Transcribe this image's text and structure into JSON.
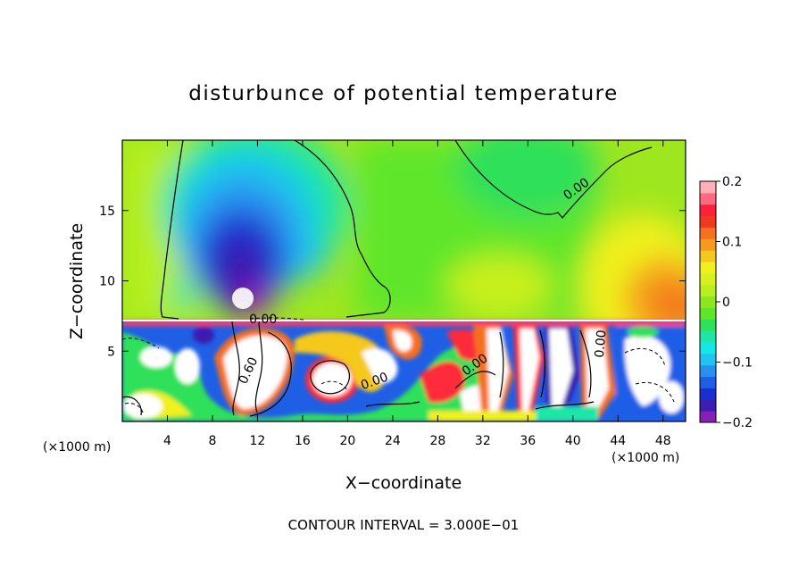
{
  "chart_data": {
    "type": "heatmap",
    "title": "disturbunce of potential temperature",
    "xlabel": "X−coordinate",
    "ylabel": "Z−coordinate",
    "x_unit_left": "(×1000 m)",
    "x_unit_right": "(×1000 m)",
    "footer": "CONTOUR INTERVAL = 3.000E−01",
    "xlim": [
      0,
      50
    ],
    "ylim": [
      0,
      20
    ],
    "xticks": [
      4,
      8,
      12,
      16,
      20,
      24,
      28,
      32,
      36,
      40,
      44,
      48
    ],
    "yticks": [
      5,
      10,
      15
    ],
    "colorbar": {
      "range": [
        -0.2,
        0.2
      ],
      "tick_values": [
        0.2,
        0.1,
        0,
        -0.1,
        -0.2
      ],
      "tick_labels": [
        "0.2",
        "0.1",
        "0",
        "−0.1",
        "−0.2"
      ],
      "colors": [
        "#8a1fb5",
        "#3b1fb0",
        "#1a2fd0",
        "#1f5fe6",
        "#2a90f0",
        "#1fc4f0",
        "#15e6e6",
        "#1fe6a8",
        "#2ee05a",
        "#5fe62a",
        "#8ee61f",
        "#b6f01f",
        "#d8f01f",
        "#f0f01f",
        "#f5c81f",
        "#f59a1f",
        "#f5701f",
        "#f03a1f",
        "#ff1f3a",
        "#ff6a80",
        "#ffb0b8"
      ]
    },
    "contour_labels": [
      {
        "text": "0.00",
        "x": 40.5,
        "z": 16.3,
        "angle": -35
      },
      {
        "text": "0.00",
        "x": 12.5,
        "z": 7.0,
        "angle": 0
      },
      {
        "text": "0.60",
        "x": 11.5,
        "z": 3.5,
        "angle": -65
      },
      {
        "text": "0.00",
        "x": 22.5,
        "z": 2.6,
        "angle": -20
      },
      {
        "text": "0.00",
        "x": 31.5,
        "z": 3.8,
        "angle": -35
      },
      {
        "text": "0.00",
        "x": 42.8,
        "z": 5.5,
        "angle": -85
      }
    ]
  }
}
